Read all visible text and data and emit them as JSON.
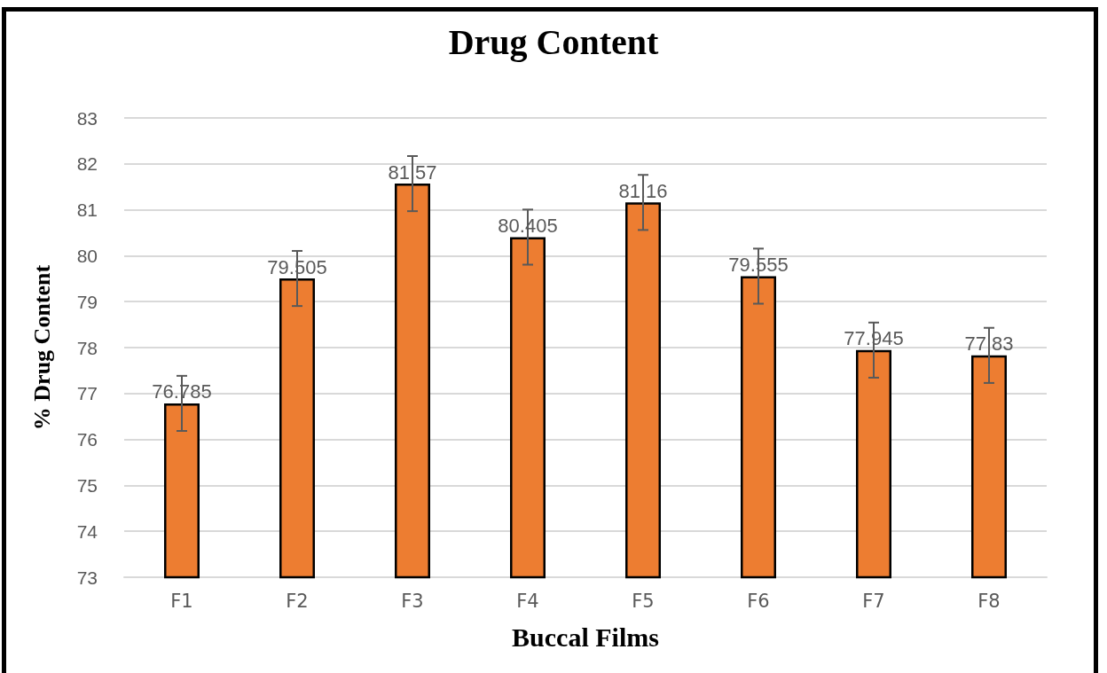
{
  "chart_data": {
    "type": "bar",
    "title": "Drug Content",
    "xlabel": "Buccal Films",
    "ylabel": "% Drug Content",
    "categories": [
      "F1",
      "F2",
      "F3",
      "F4",
      "F5",
      "F6",
      "F7",
      "F8"
    ],
    "values": [
      76.785,
      79.505,
      81.57,
      80.405,
      81.16,
      79.555,
      77.945,
      77.83
    ],
    "errors": [
      0.6,
      0.6,
      0.6,
      0.6,
      0.6,
      0.6,
      0.6,
      0.6
    ],
    "color": "#ed7d31",
    "ylim": [
      73,
      83
    ],
    "yticks": [
      73,
      74,
      75,
      76,
      77,
      78,
      79,
      80,
      81,
      82,
      83
    ],
    "grid": "y",
    "data_labels": true
  }
}
